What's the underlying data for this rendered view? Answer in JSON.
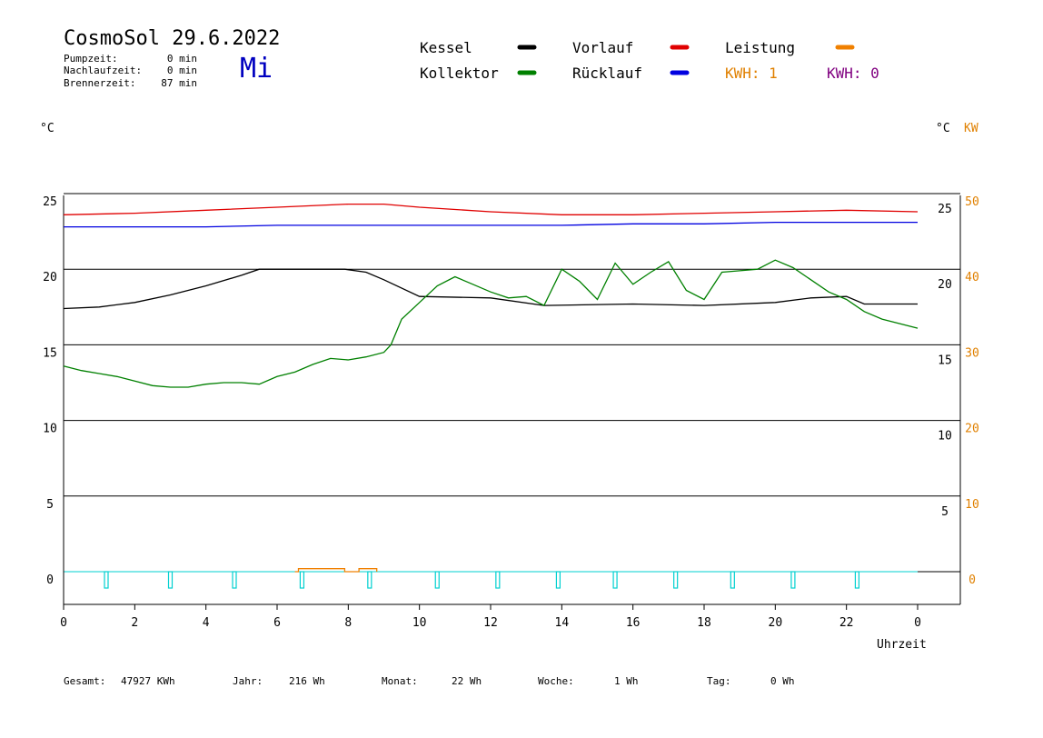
{
  "header": {
    "title": "CosmoSol 29.6.2022",
    "weekday": "Mi",
    "stats": [
      {
        "label": "Pumpzeit:",
        "value": "0 min"
      },
      {
        "label": "Nachlaufzeit:",
        "value": "0 min"
      },
      {
        "label": "Brennerzeit:",
        "value": "87 min"
      }
    ]
  },
  "legend": {
    "items": [
      {
        "label": "Kessel",
        "color": "#000000"
      },
      {
        "label": "Vorlauf",
        "color": "#e00000"
      },
      {
        "label": "Leistung",
        "color": "#f08000"
      },
      {
        "label": "Kollektor",
        "color": "#008000"
      },
      {
        "label": "Rücklauf",
        "color": "#0000e0"
      }
    ],
    "kwh1": "KWH: 1",
    "kwh1_color": "#e08000",
    "kwh2": "KWH: 0",
    "kwh2_color": "#800080"
  },
  "axes": {
    "left_unit": "°C",
    "right_unit": "°C",
    "right_unit2": "KW",
    "xlabel": "Uhrzeit"
  },
  "footer": {
    "items": [
      {
        "label": "Gesamt:",
        "value": "47927 KWh"
      },
      {
        "label": "Jahr:",
        "value": "216 Wh"
      },
      {
        "label": "Monat:",
        "value": "22 Wh"
      },
      {
        "label": "Woche:",
        "value": "1 Wh"
      },
      {
        "label": "Tag:",
        "value": "0 Wh"
      }
    ]
  },
  "chart_data": {
    "type": "line",
    "xlim": [
      0,
      24
    ],
    "ylim": [
      -2,
      25
    ],
    "x_ticks": [
      "0",
      "2",
      "4",
      "6",
      "8",
      "10",
      "12",
      "14",
      "16",
      "18",
      "20",
      "22",
      "0"
    ],
    "y_ticks_left": [
      "25",
      "20",
      "15",
      "10",
      "5",
      "0"
    ],
    "y_ticks_right": [
      "25",
      "20",
      "15",
      "10",
      "5"
    ],
    "y_ticks_right2": [
      "50",
      "40",
      "30",
      "20",
      "10",
      "0"
    ],
    "grid": true,
    "series": [
      {
        "name": "Vorlauf",
        "color": "#e00000",
        "x": [
          0,
          2,
          4,
          6,
          8,
          9,
          10,
          12,
          14,
          16,
          18,
          20,
          22,
          24
        ],
        "y": [
          23.6,
          23.7,
          23.9,
          24.1,
          24.3,
          24.3,
          24.1,
          23.8,
          23.6,
          23.6,
          23.7,
          23.8,
          23.9,
          23.8
        ]
      },
      {
        "name": "Rücklauf",
        "color": "#0000e0",
        "x": [
          0,
          2,
          4,
          6,
          8,
          10,
          12,
          14,
          16,
          18,
          20,
          22,
          24
        ],
        "y": [
          22.8,
          22.8,
          22.8,
          22.9,
          22.9,
          22.9,
          22.9,
          22.9,
          23.0,
          23.0,
          23.1,
          23.1,
          23.1
        ]
      },
      {
        "name": "Kessel",
        "color": "#000000",
        "x": [
          0,
          1,
          2,
          3,
          4,
          5,
          5.5,
          7.9,
          8.5,
          9,
          10,
          12,
          13.5,
          16,
          18,
          20,
          21,
          22,
          22.5,
          24
        ],
        "y": [
          17.4,
          17.5,
          17.8,
          18.3,
          18.9,
          19.6,
          20.0,
          20.0,
          19.8,
          19.3,
          18.2,
          18.1,
          17.6,
          17.7,
          17.6,
          17.8,
          18.1,
          18.2,
          17.7,
          17.7
        ]
      },
      {
        "name": "Kollektor",
        "color": "#008000",
        "x": [
          0,
          0.5,
          1,
          1.5,
          2,
          2.5,
          3,
          3.5,
          4,
          4.5,
          5,
          5.5,
          6,
          6.5,
          7,
          7.5,
          8,
          8.5,
          9,
          9.2,
          9.5,
          10,
          10.5,
          11,
          11.5,
          12,
          12.5,
          13,
          13.5,
          14,
          14.5,
          15,
          15.5,
          16,
          16.5,
          17,
          17.5,
          18,
          18.5,
          19,
          19.5,
          20,
          20.5,
          21,
          21.5,
          22,
          22.5,
          23,
          23.5,
          24
        ],
        "y": [
          13.6,
          13.3,
          13.1,
          12.9,
          12.6,
          12.3,
          12.2,
          12.2,
          12.4,
          12.5,
          12.5,
          12.4,
          12.9,
          13.2,
          13.7,
          14.1,
          14.0,
          14.2,
          14.5,
          15.0,
          16.7,
          17.8,
          18.9,
          19.5,
          19.0,
          18.5,
          18.1,
          18.2,
          17.6,
          20.0,
          19.2,
          18.0,
          20.4,
          19.0,
          19.8,
          20.5,
          18.6,
          18.0,
          19.8,
          19.9,
          20.0,
          20.6,
          20.1,
          19.3,
          18.5,
          18.0,
          17.2,
          16.7,
          16.4,
          16.1
        ]
      },
      {
        "name": "Leistung",
        "color": "#f08000",
        "x": [
          6.5,
          6.6,
          6.6,
          7.9,
          7.9,
          8.3,
          8.3,
          8.8,
          8.8
        ],
        "y": [
          0,
          0,
          0.2,
          0.2,
          0,
          0,
          0.2,
          0.2,
          0
        ]
      }
    ],
    "pulses": {
      "color": "#00d0d0",
      "x": [
        1.2,
        3.0,
        4.8,
        6.7,
        8.6,
        10.5,
        12.2,
        13.9,
        15.5,
        17.2,
        18.8,
        20.5,
        22.3
      ]
    }
  }
}
